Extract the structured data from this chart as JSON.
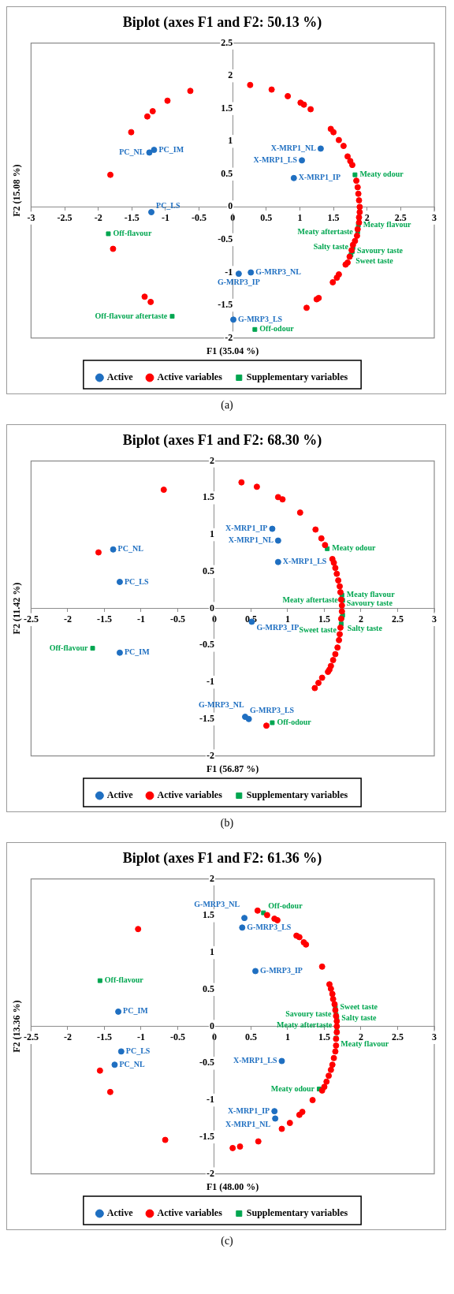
{
  "chart_data": [
    {
      "type": "scatter",
      "title": "Biplot (axes F1 and F2: 50.13 %)",
      "xlabel": "F1 (35.04 %)",
      "ylabel": "F2 (15.08 %)",
      "xlim": [
        -3,
        3
      ],
      "ylim": [
        -2,
        2.5
      ],
      "xticks": [
        -3,
        -2.5,
        -2,
        -1.5,
        -1,
        -0.5,
        0,
        0.5,
        1,
        1.5,
        2,
        2.5,
        3
      ],
      "yticks": [
        -2,
        -1.5,
        -1,
        -0.5,
        0,
        0.5,
        1,
        1.5,
        2,
        2.5
      ],
      "legend": "bottom",
      "annotations": [
        "(a)"
      ],
      "series": [
        {
          "name": "Active",
          "color": "#1f6fc1",
          "marker": "circle",
          "x": [
            -1.17,
            -1.24,
            -1.21,
            1.31,
            1.03,
            0.91,
            0.27,
            0.09,
            0.01
          ],
          "values": [
            0.87,
            0.83,
            -0.08,
            0.89,
            0.71,
            0.44,
            -1.0,
            -1.02,
            -1.72
          ],
          "value_labels": [
            "PC_IM",
            "PC_NL",
            "PC_LS",
            "X-MRP1_NL",
            "X-MRP1_LS",
            "X-MRP1_IP",
            "G-MRP3_NL",
            "G-MRP3_IP",
            "G-MRP3_LS"
          ]
        },
        {
          "name": "Active variables",
          "color": "#ff0000",
          "marker": "circle",
          "x": [
            -0.63,
            -0.97,
            -1.19,
            -1.27,
            -1.51,
            -1.82,
            -1.78,
            -1.31,
            -1.22,
            0.26,
            0.58,
            0.82,
            1.01,
            1.06,
            1.16,
            1.46,
            1.5,
            1.58,
            1.65,
            1.71,
            1.75,
            1.78,
            1.84,
            1.86,
            1.87,
            1.88,
            1.89,
            1.89,
            1.88,
            1.88,
            1.86,
            1.85,
            1.82,
            1.79,
            1.77,
            1.74,
            1.71,
            1.68,
            1.58,
            1.55,
            1.49,
            1.28,
            1.25,
            1.1
          ],
          "values": [
            1.77,
            1.62,
            1.46,
            1.38,
            1.14,
            0.49,
            -0.64,
            -1.37,
            -1.45,
            1.86,
            1.79,
            1.69,
            1.59,
            1.56,
            1.49,
            1.19,
            1.14,
            1.02,
            0.93,
            0.77,
            0.7,
            0.64,
            0.4,
            0.3,
            0.2,
            0.1,
            0,
            -0.08,
            -0.16,
            -0.24,
            -0.34,
            -0.44,
            -0.52,
            -0.58,
            -0.66,
            -0.76,
            -0.85,
            -0.88,
            -1.03,
            -1.08,
            -1.15,
            -1.39,
            -1.41,
            -1.54
          ]
        },
        {
          "name": "Supplementary variables",
          "color": "#00a650",
          "marker": "square",
          "x": [
            1.82,
            1.87,
            1.86,
            1.79,
            1.78,
            1.76,
            -1.85,
            -0.9,
            0.33
          ],
          "values": [
            0.49,
            -0.28,
            -0.38,
            -0.62,
            -0.68,
            -0.73,
            -0.41,
            -1.67,
            -1.87
          ],
          "value_labels": [
            "Meaty odour",
            "Meaty flavour",
            "Meaty aftertaste",
            "Salty taste",
            "Savoury taste",
            "Sweet taste",
            "Off-flavour",
            "Off-flavour aftertaste",
            "Off-odour"
          ]
        }
      ]
    },
    {
      "type": "scatter",
      "title": "Biplot (axes F1 and F2: 68.30 %)",
      "xlabel": "F1 (56.87 %)",
      "ylabel": "F2 (11.42 %)",
      "xlim": [
        -2.5,
        3
      ],
      "ylim": [
        -2,
        2
      ],
      "xticks": [
        -2.5,
        -2,
        -1.5,
        -1,
        -0.5,
        0,
        0.5,
        1,
        1.5,
        2,
        2.5,
        3
      ],
      "yticks": [
        -2,
        -1.5,
        -1,
        -0.5,
        0,
        0.5,
        1,
        1.5,
        2
      ],
      "legend": "bottom",
      "annotations": [
        "(b)"
      ],
      "series": [
        {
          "name": "Active",
          "color": "#1f6fc1",
          "marker": "circle",
          "x": [
            -1.38,
            -1.29,
            -1.29,
            0.79,
            0.87,
            0.87,
            0.51,
            0.42,
            0.47
          ],
          "values": [
            0.8,
            0.36,
            -0.6,
            1.08,
            0.92,
            0.63,
            -0.18,
            -1.47,
            -1.5
          ],
          "value_labels": [
            "PC_NL",
            "PC_LS",
            "PC_IM",
            "X-MRP1_IP",
            "X-MRP1_NL",
            "X-MRP1_LS",
            "G-MRP3_IP",
            "G-MRP3_LS",
            "G-MRP3_NL"
          ]
        },
        {
          "name": "Active variables",
          "color": "#ff0000",
          "marker": "circle",
          "x": [
            -0.69,
            -1.58,
            0.37,
            0.58,
            0.87,
            0.93,
            1.17,
            1.38,
            1.46,
            1.51,
            0.71,
            1.61,
            1.63,
            1.65,
            1.67,
            1.69,
            1.71,
            1.72,
            1.73,
            1.74,
            1.74,
            1.73,
            1.72,
            1.71,
            1.7,
            1.68,
            1.65,
            1.62,
            1.59,
            1.57,
            1.55,
            1.47,
            1.42,
            1.37
          ],
          "values": [
            1.61,
            0.76,
            1.71,
            1.65,
            1.51,
            1.48,
            1.3,
            1.07,
            0.95,
            0.86,
            -1.59,
            0.67,
            0.62,
            0.55,
            0.47,
            0.38,
            0.3,
            0.22,
            0.12,
            0.04,
            -0.04,
            -0.14,
            -0.26,
            -0.35,
            -0.43,
            -0.53,
            -0.62,
            -0.7,
            -0.78,
            -0.83,
            -0.86,
            -0.94,
            -1.01,
            -1.08
          ]
        },
        {
          "name": "Supplementary variables",
          "color": "#00a650",
          "marker": "square",
          "x": [
            1.54,
            1.74,
            1.75,
            1.75,
            1.74,
            1.73,
            -1.66,
            0.79
          ],
          "values": [
            0.81,
            0.18,
            0.11,
            -0.09,
            -0.12,
            -0.21,
            -0.54,
            -1.55
          ],
          "value_labels": [
            "Meaty odour",
            "Meaty flavour",
            "Meaty aftertaste",
            "Salty taste",
            "Savoury taste",
            "Sweet taste",
            "Off-flavour",
            "Off-odour"
          ]
        }
      ]
    },
    {
      "type": "scatter",
      "title": "Biplot (axes F1 and F2: 61.36 %)",
      "xlabel": "F1 (48.00 %)",
      "ylabel": "F2 (13.36 %)",
      "xlim": [
        -2.5,
        3
      ],
      "ylim": [
        -2,
        2
      ],
      "xticks": [
        -2.5,
        -2,
        -1.5,
        -1,
        -0.5,
        0,
        0.5,
        1,
        1.5,
        2,
        2.5,
        3
      ],
      "yticks": [
        -2,
        -1.5,
        -1,
        -0.5,
        0,
        0.5,
        1,
        1.5,
        2
      ],
      "legend": "bottom",
      "annotations": [
        "(c)"
      ],
      "series": [
        {
          "name": "Active",
          "color": "#1f6fc1",
          "marker": "circle",
          "x": [
            -1.31,
            -1.27,
            -1.36,
            0.41,
            0.38,
            0.56,
            0.92,
            0.82,
            0.83
          ],
          "values": [
            0.2,
            -0.34,
            -0.52,
            1.47,
            1.34,
            0.75,
            -0.47,
            -1.15,
            -1.25
          ],
          "value_labels": [
            "PC_IM",
            "PC_LS",
            "PC_NL",
            "G-MRP3_NL",
            "G-MRP3_LS",
            "G-MRP3_IP",
            "X-MRP1_LS",
            "X-MRP1_IP",
            "X-MRP1_NL"
          ]
        },
        {
          "name": "Active variables",
          "color": "#ff0000",
          "marker": "circle",
          "x": [
            -1.04,
            -1.56,
            -1.42,
            -0.67,
            0.59,
            0.72,
            0.82,
            0.86,
            1.12,
            1.16,
            1.22,
            1.25,
            1.47,
            1.34,
            1.2,
            1.16,
            1.03,
            0.92,
            0.6,
            0.35,
            0.25,
            1.57,
            1.59,
            1.61,
            1.62,
            1.64,
            1.65,
            1.66,
            1.67,
            1.67,
            1.67,
            1.66,
            1.66,
            1.65,
            1.63,
            1.61,
            1.59,
            1.56,
            1.53,
            1.5,
            1.47
          ],
          "values": [
            1.32,
            -0.6,
            -0.89,
            -1.54,
            1.57,
            1.51,
            1.46,
            1.44,
            1.23,
            1.21,
            1.14,
            1.11,
            0.81,
            -1.0,
            -1.16,
            -1.2,
            -1.31,
            -1.39,
            -1.56,
            -1.63,
            -1.65,
            0.57,
            0.51,
            0.44,
            0.37,
            0.3,
            0.22,
            0.14,
            0.07,
            0,
            -0.08,
            -0.17,
            -0.26,
            -0.34,
            -0.43,
            -0.52,
            -0.59,
            -0.67,
            -0.75,
            -0.82,
            -0.87
          ]
        },
        {
          "name": "Supplementary variables",
          "color": "#00a650",
          "marker": "square",
          "x": [
            -1.56,
            0.67,
            1.65,
            1.66,
            1.67,
            1.67,
            1.66,
            1.43
          ],
          "values": [
            0.62,
            1.54,
            0.26,
            0.16,
            0.11,
            -0.07,
            -0.16,
            -0.85
          ],
          "value_labels": [
            "Off-flavour",
            "Off-odour",
            "Sweet taste",
            "Savoury taste",
            "Salty taste",
            "Meaty aftertaste",
            "Meaty flavour",
            "Meaty odour"
          ]
        }
      ]
    }
  ]
}
